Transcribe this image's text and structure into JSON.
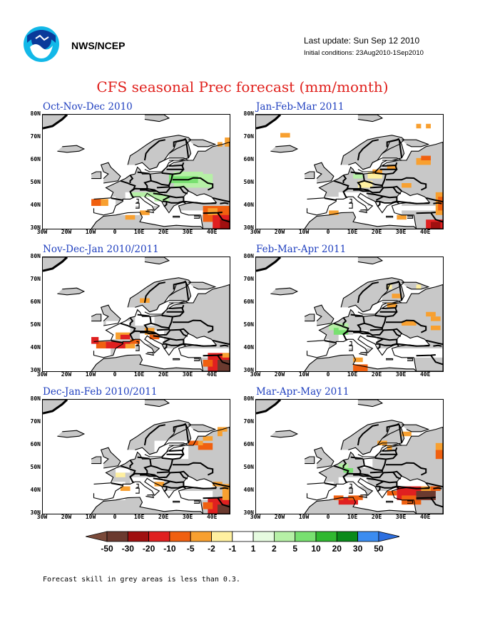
{
  "header": {
    "organization": "NWS/NCEP",
    "last_update": "Last update: Sun Sep 12 2010",
    "initial_conditions": "Initial conditions: 23Aug2010-1Sep2010",
    "title": "CFS seasonal Prec forecast (mm/month)"
  },
  "axes": {
    "lat_labels": [
      "80N",
      "70N",
      "60N",
      "50N",
      "40N",
      "30N"
    ],
    "lon_labels": [
      "30W",
      "20W",
      "10W",
      "0",
      "10E",
      "20E",
      "30E",
      "40E"
    ]
  },
  "panels": [
    {
      "title": "Oct-Nov-Dec 2010"
    },
    {
      "title": "Jan-Feb-Mar 2011"
    },
    {
      "title": "Nov-Dec-Jan 2010/2011"
    },
    {
      "title": "Feb-Mar-Apr 2011"
    },
    {
      "title": "Dec-Jan-Feb 2010/2011"
    },
    {
      "title": "Mar-Apr-May 2011"
    }
  ],
  "colorbar": {
    "labels": [
      "-50",
      "-30",
      "-20",
      "-10",
      "-5",
      "-2",
      "-1",
      "1",
      "2",
      "5",
      "10",
      "20",
      "30",
      "50"
    ],
    "colors": [
      "#7a4a3a",
      "#6b3a2f",
      "#a01010",
      "#e02020",
      "#f06010",
      "#f8a030",
      "#fff0a0",
      "#ffffff",
      "#e6fbe0",
      "#b6f0a6",
      "#78e070",
      "#30b830",
      "#0a8a1a",
      "#3b8cf0",
      "#2d6fe0"
    ]
  },
  "footnote": "Forecast skill in grey areas is less than 0.3."
}
